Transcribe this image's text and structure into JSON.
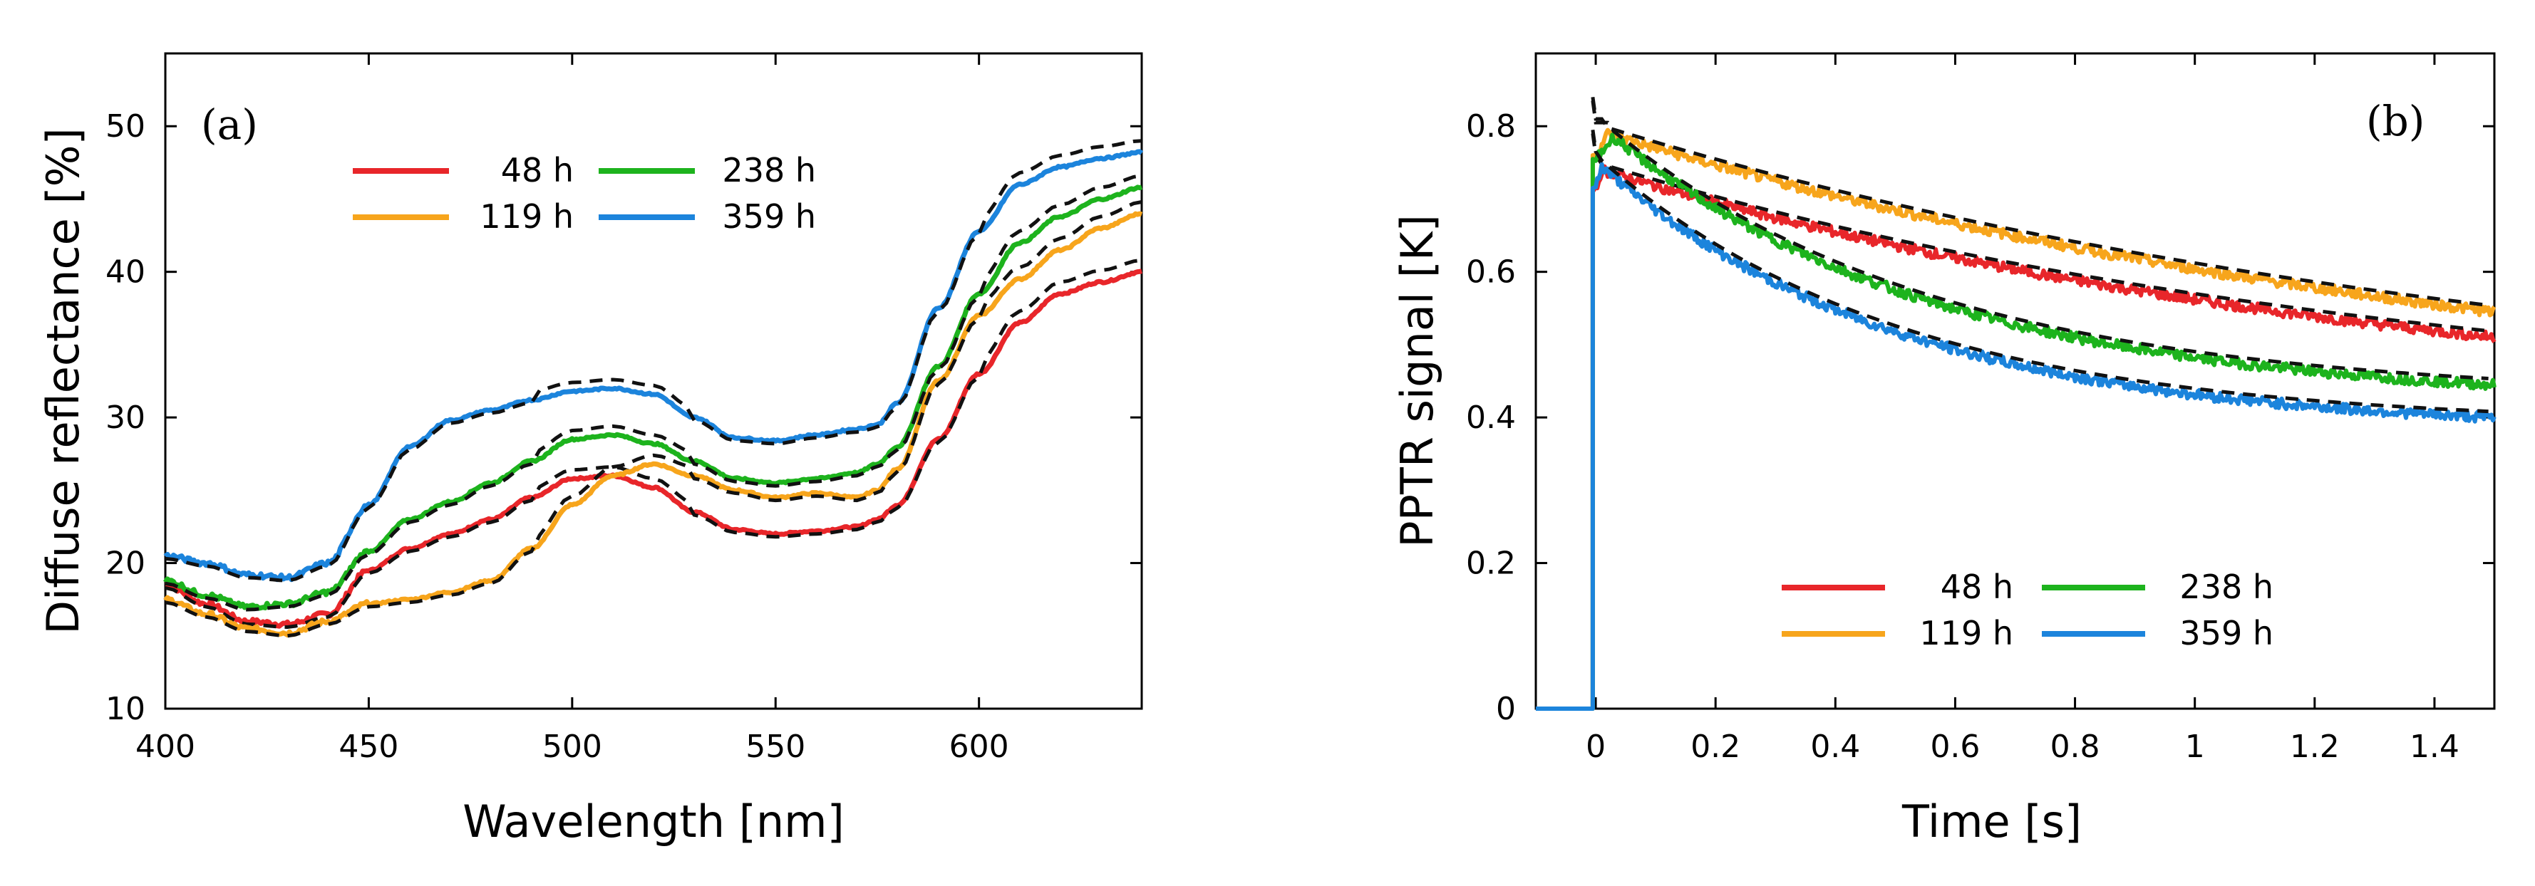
{
  "chart_data": [
    {
      "type": "line",
      "panel_label": "(a)",
      "xlabel": "Wavelength [nm]",
      "ylabel": "Diffuse reflectance [%]",
      "xlim": [
        400,
        640
      ],
      "ylim": [
        10,
        55
      ],
      "xticks": [
        400,
        450,
        500,
        550,
        600
      ],
      "xtick_labels": [
        "400",
        "450",
        "500",
        "550",
        "600"
      ],
      "yticks": [
        10,
        20,
        30,
        40,
        50
      ],
      "ytick_labels": [
        "10",
        "20",
        "30",
        "40",
        "50"
      ],
      "legend_position": "top-center",
      "x": [
        400,
        410,
        420,
        430,
        440,
        450,
        460,
        470,
        480,
        490,
        500,
        510,
        520,
        530,
        540,
        550,
        560,
        570,
        575,
        580,
        590,
        600,
        610,
        620,
        630,
        640
      ],
      "series": [
        {
          "name": "48 h",
          "color": "#e8262a",
          "values": [
            18.5,
            17.2,
            16.0,
            15.8,
            16.5,
            19.5,
            21.0,
            22.0,
            23.0,
            24.5,
            25.8,
            26.0,
            25.2,
            23.5,
            22.3,
            22.0,
            22.2,
            22.5,
            23.0,
            24.0,
            28.5,
            33.0,
            36.5,
            38.5,
            39.3,
            40.0
          ]
        },
        {
          "name": "119 h",
          "color": "#f7a51c",
          "values": [
            17.5,
            16.5,
            15.5,
            15.2,
            16.0,
            17.2,
            17.5,
            18.0,
            18.8,
            21.0,
            24.0,
            26.0,
            26.8,
            26.0,
            25.0,
            24.5,
            24.8,
            24.5,
            25.0,
            26.5,
            32.5,
            37.0,
            39.5,
            41.5,
            43.0,
            44.0
          ]
        },
        {
          "name": "238 h",
          "color": "#1db31d",
          "values": [
            18.8,
            17.8,
            17.0,
            17.2,
            18.0,
            20.8,
            23.0,
            24.2,
            25.5,
            27.0,
            28.5,
            28.8,
            28.2,
            27.0,
            25.8,
            25.5,
            25.8,
            26.2,
            26.8,
            28.0,
            33.5,
            38.5,
            42.0,
            43.8,
            45.0,
            45.8
          ]
        },
        {
          "name": "359 h",
          "color": "#1c84dc",
          "values": [
            20.5,
            20.0,
            19.2,
            19.0,
            20.0,
            24.0,
            28.0,
            29.8,
            30.5,
            31.2,
            31.8,
            32.0,
            31.6,
            30.0,
            28.6,
            28.4,
            28.8,
            29.2,
            29.5,
            31.0,
            37.5,
            42.8,
            46.0,
            47.2,
            47.8,
            48.2
          ]
        }
      ]
    },
    {
      "type": "line",
      "panel_label": "(b)",
      "xlabel": "Time [s]",
      "ylabel": "PPTR signal [K]",
      "xlim": [
        -0.1,
        1.5
      ],
      "ylim": [
        0,
        0.9
      ],
      "xticks": [
        0,
        0.2,
        0.4,
        0.6,
        0.8,
        1,
        1.2,
        1.4
      ],
      "xtick_labels": [
        "0",
        "0.2",
        "0.4",
        "0.6",
        "0.8",
        "1",
        "1.2",
        "1.4"
      ],
      "yticks": [
        0,
        0.2,
        0.4,
        0.6,
        0.8
      ],
      "ytick_labels": [
        "0",
        "0.2",
        "0.4",
        "0.6",
        "0.8"
      ],
      "legend_position": "bottom-center",
      "series": [
        {
          "name": "48 h",
          "color": "#e8262a",
          "peak": 0.74,
          "peak_t": 0.01,
          "end": 0.51,
          "tau": 1.4
        },
        {
          "name": "119 h",
          "color": "#f7a51c",
          "peak": 0.79,
          "peak_t": 0.02,
          "end": 0.545,
          "tau": 1.6
        },
        {
          "name": "238 h",
          "color": "#1db31d",
          "peak": 0.785,
          "peak_t": 0.03,
          "end": 0.445,
          "tau": 0.55
        },
        {
          "name": "359 h",
          "color": "#1c84dc",
          "peak": 0.745,
          "peak_t": 0.01,
          "end": 0.4,
          "tau": 0.5
        }
      ]
    }
  ]
}
